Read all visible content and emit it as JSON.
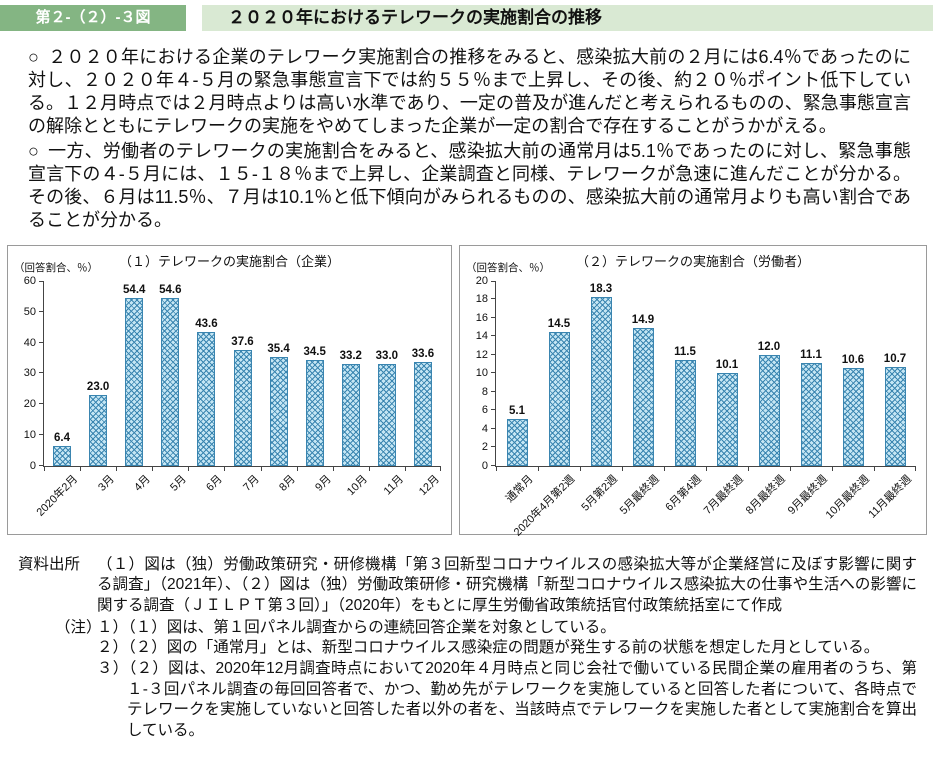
{
  "header": {
    "figure_label": "第２-（２）-３図",
    "title": "２０２０年におけるテレワークの実施割合の推移"
  },
  "bullets": [
    {
      "marker": "○",
      "text": "２０２０年における企業のテレワーク実施割合の推移をみると、感染拡大前の２月には6.4％であったのに対し、２０２０年４-５月の緊急事態宣言下では約５５％まで上昇し、その後、約２０％ポイント低下している。１２月時点では２月時点よりは高い水準であり、一定の普及が進んだと考えられるものの、緊急事態宣言の解除とともにテレワークの実施をやめてしまった企業が一定の割合で存在することがうかがえる。"
    },
    {
      "marker": "○",
      "text": "一方、労働者のテレワークの実施割合をみると、感染拡大前の通常月は5.1％であったのに対し、緊急事態宣言下の４-５月には、１５-１８％まで上昇し、企業調査と同様、テレワークが急速に進んだことが分かる。その後、６月は11.5％、７月は10.1％と低下傾向がみられるものの、感染拡大前の通常月よりも高い割合であることが分かる。"
    }
  ],
  "chart_data": [
    {
      "type": "bar",
      "title": "（１）テレワークの実施割合（企業）",
      "unit_label": "（回答割合、％）",
      "categories": [
        "2020年2月",
        "3月",
        "4月",
        "5月",
        "6月",
        "7月",
        "8月",
        "9月",
        "10月",
        "11月",
        "12月"
      ],
      "values": [
        6.4,
        23.0,
        54.4,
        54.6,
        43.6,
        37.6,
        35.4,
        34.5,
        33.2,
        33.0,
        33.6
      ],
      "ylim": [
        0,
        60
      ],
      "ytick_step": 10,
      "grid": false,
      "legend": "none",
      "bar_color": "#c5e6f4",
      "pattern_color": "#3a85b0"
    },
    {
      "type": "bar",
      "title": "（２）テレワークの実施割合（労働者）",
      "unit_label": "（回答割合、％）",
      "categories": [
        "通常月",
        "2020年4月第2週",
        "5月第2週",
        "5月最終週",
        "6月第4週",
        "7月最終週",
        "8月最終週",
        "9月最終週",
        "10月最終週",
        "11月最終週"
      ],
      "values": [
        5.1,
        14.5,
        18.3,
        14.9,
        11.5,
        10.1,
        12.0,
        11.1,
        10.6,
        10.7
      ],
      "ylim": [
        0,
        20
      ],
      "ytick_step": 2,
      "grid": false,
      "legend": "none",
      "bar_color": "#c5e6f4",
      "pattern_color": "#3a85b0"
    }
  ],
  "notes": {
    "source_label": "資料出所",
    "source_text": "（１）図は（独）労働政策研究・研修機構「第３回新型コロナウイルスの感染拡大等が企業経営に及ぼす影響に関する調査」（2021年）、（２）図は（独）労働政策研修・研究機構「新型コロナウイルス感染拡大の仕事や生活への影響に関する調査（ＪＩＬＰＴ第３回）」（2020年）をもとに厚生労働省政策統括官付政策統括室にて作成",
    "note_label": "（注）",
    "note_items": [
      "１）（１）図は、第１回パネル調査からの連続回答企業を対象としている。",
      "２）（２）図の「通常月」とは、新型コロナウイルス感染症の問題が発生する前の状態を想定した月としている。",
      "３）（２）図は、2020年12月調査時点において2020年４月時点と同じ会社で働いている民間企業の雇用者のうち、第１-３回パネル調査の毎回回答者で、かつ、勤め先がテレワークを実施していると回答した者について、各時点でテレワークを実施していないと回答した者以外の者を、当該時点でテレワークを実施した者として実施割合を算出している。"
    ]
  },
  "colors": {
    "figure_label_bg": "#84b583",
    "title_bar_bg": "#d9e9d3",
    "bar_fill": "#c5e6f4",
    "bar_pattern": "#3a85b0",
    "axis": "#444444"
  }
}
